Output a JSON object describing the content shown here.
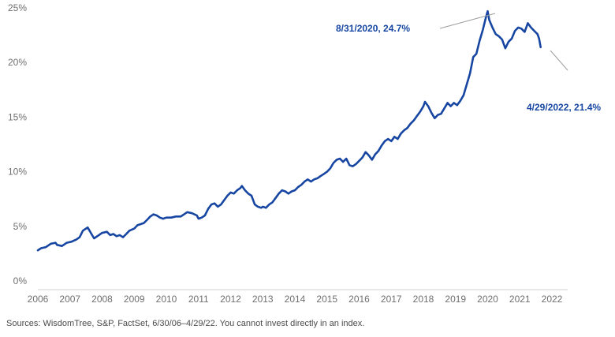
{
  "chart_data": {
    "type": "line",
    "title": "",
    "xlabel": "",
    "ylabel": "",
    "ylim": [
      0,
      25
    ],
    "xlim": [
      2006.0,
      2022.0
    ],
    "grid": false,
    "y_ticks": [
      "0%",
      "5%",
      "10%",
      "15%",
      "20%",
      "25%"
    ],
    "x_ticks": [
      "2006",
      "2007",
      "2008",
      "2009",
      "2010",
      "2011",
      "2012",
      "2013",
      "2014",
      "2015",
      "2016",
      "2017",
      "2018",
      "2019",
      "2020",
      "2021",
      "2022"
    ],
    "line_color": "#1746a2",
    "series": [
      {
        "values": [
          [
            2006.0,
            2.8
          ],
          [
            2006.1,
            3.0
          ],
          [
            2006.25,
            3.1
          ],
          [
            2006.4,
            3.4
          ],
          [
            2006.55,
            3.5
          ],
          [
            2006.6,
            3.3
          ],
          [
            2006.75,
            3.2
          ],
          [
            2006.9,
            3.5
          ],
          [
            2007.05,
            3.6
          ],
          [
            2007.2,
            3.8
          ],
          [
            2007.3,
            4.0
          ],
          [
            2007.4,
            4.6
          ],
          [
            2007.55,
            4.9
          ],
          [
            2007.65,
            4.4
          ],
          [
            2007.75,
            3.9
          ],
          [
            2007.9,
            4.2
          ],
          [
            2008.0,
            4.4
          ],
          [
            2008.15,
            4.5
          ],
          [
            2008.25,
            4.2
          ],
          [
            2008.35,
            4.3
          ],
          [
            2008.45,
            4.1
          ],
          [
            2008.55,
            4.2
          ],
          [
            2008.65,
            4.0
          ],
          [
            2008.75,
            4.3
          ],
          [
            2008.85,
            4.6
          ],
          [
            2009.0,
            4.8
          ],
          [
            2009.1,
            5.1
          ],
          [
            2009.2,
            5.2
          ],
          [
            2009.3,
            5.3
          ],
          [
            2009.4,
            5.6
          ],
          [
            2009.5,
            5.9
          ],
          [
            2009.6,
            6.1
          ],
          [
            2009.7,
            6.0
          ],
          [
            2009.8,
            5.8
          ],
          [
            2009.9,
            5.7
          ],
          [
            2010.0,
            5.8
          ],
          [
            2010.15,
            5.8
          ],
          [
            2010.3,
            5.9
          ],
          [
            2010.45,
            5.9
          ],
          [
            2010.55,
            6.1
          ],
          [
            2010.65,
            6.3
          ],
          [
            2010.8,
            6.2
          ],
          [
            2010.95,
            6.0
          ],
          [
            2011.0,
            5.7
          ],
          [
            2011.1,
            5.8
          ],
          [
            2011.2,
            6.0
          ],
          [
            2011.3,
            6.6
          ],
          [
            2011.4,
            7.0
          ],
          [
            2011.5,
            7.1
          ],
          [
            2011.6,
            6.8
          ],
          [
            2011.7,
            7.0
          ],
          [
            2011.8,
            7.4
          ],
          [
            2011.9,
            7.8
          ],
          [
            2012.0,
            8.1
          ],
          [
            2012.1,
            8.0
          ],
          [
            2012.2,
            8.3
          ],
          [
            2012.3,
            8.5
          ],
          [
            2012.35,
            8.7
          ],
          [
            2012.45,
            8.3
          ],
          [
            2012.55,
            8.0
          ],
          [
            2012.65,
            7.8
          ],
          [
            2012.75,
            7.0
          ],
          [
            2012.85,
            6.8
          ],
          [
            2012.95,
            6.7
          ],
          [
            2013.0,
            6.8
          ],
          [
            2013.1,
            6.7
          ],
          [
            2013.2,
            7.0
          ],
          [
            2013.3,
            7.2
          ],
          [
            2013.4,
            7.6
          ],
          [
            2013.5,
            8.0
          ],
          [
            2013.6,
            8.3
          ],
          [
            2013.7,
            8.2
          ],
          [
            2013.8,
            8.0
          ],
          [
            2013.9,
            8.2
          ],
          [
            2014.0,
            8.3
          ],
          [
            2014.1,
            8.6
          ],
          [
            2014.2,
            8.8
          ],
          [
            2014.3,
            9.1
          ],
          [
            2014.4,
            9.3
          ],
          [
            2014.5,
            9.1
          ],
          [
            2014.6,
            9.3
          ],
          [
            2014.7,
            9.4
          ],
          [
            2014.8,
            9.6
          ],
          [
            2014.9,
            9.8
          ],
          [
            2015.0,
            10.0
          ],
          [
            2015.1,
            10.3
          ],
          [
            2015.2,
            10.8
          ],
          [
            2015.3,
            11.1
          ],
          [
            2015.4,
            11.2
          ],
          [
            2015.5,
            10.9
          ],
          [
            2015.6,
            11.2
          ],
          [
            2015.7,
            10.6
          ],
          [
            2015.8,
            10.5
          ],
          [
            2015.9,
            10.7
          ],
          [
            2016.0,
            11.0
          ],
          [
            2016.1,
            11.3
          ],
          [
            2016.2,
            11.8
          ],
          [
            2016.3,
            11.5
          ],
          [
            2016.4,
            11.1
          ],
          [
            2016.5,
            11.6
          ],
          [
            2016.6,
            11.9
          ],
          [
            2016.7,
            12.4
          ],
          [
            2016.8,
            12.8
          ],
          [
            2016.9,
            13.0
          ],
          [
            2017.0,
            12.8
          ],
          [
            2017.1,
            13.2
          ],
          [
            2017.2,
            13.0
          ],
          [
            2017.3,
            13.5
          ],
          [
            2017.4,
            13.8
          ],
          [
            2017.5,
            14.0
          ],
          [
            2017.6,
            14.4
          ],
          [
            2017.7,
            14.7
          ],
          [
            2017.8,
            15.1
          ],
          [
            2017.9,
            15.5
          ],
          [
            2018.0,
            16.0
          ],
          [
            2018.05,
            16.4
          ],
          [
            2018.15,
            16.0
          ],
          [
            2018.25,
            15.4
          ],
          [
            2018.35,
            14.9
          ],
          [
            2018.45,
            15.2
          ],
          [
            2018.55,
            15.3
          ],
          [
            2018.65,
            15.8
          ],
          [
            2018.75,
            16.3
          ],
          [
            2018.85,
            16.0
          ],
          [
            2018.95,
            16.3
          ],
          [
            2019.05,
            16.1
          ],
          [
            2019.15,
            16.5
          ],
          [
            2019.25,
            17.0
          ],
          [
            2019.35,
            18.0
          ],
          [
            2019.45,
            19.0
          ],
          [
            2019.55,
            20.5
          ],
          [
            2019.65,
            20.8
          ],
          [
            2019.75,
            22.0
          ],
          [
            2019.85,
            23.0
          ],
          [
            2019.95,
            24.2
          ],
          [
            2020.0,
            24.7
          ],
          [
            2020.05,
            23.9
          ],
          [
            2020.15,
            23.2
          ],
          [
            2020.25,
            22.6
          ],
          [
            2020.35,
            22.4
          ],
          [
            2020.45,
            22.1
          ],
          [
            2020.55,
            21.3
          ],
          [
            2020.65,
            21.9
          ],
          [
            2020.75,
            22.2
          ],
          [
            2020.85,
            22.9
          ],
          [
            2020.95,
            23.2
          ],
          [
            2021.05,
            23.1
          ],
          [
            2021.15,
            22.8
          ],
          [
            2021.25,
            23.6
          ],
          [
            2021.35,
            23.2
          ],
          [
            2021.45,
            22.9
          ],
          [
            2021.55,
            22.6
          ],
          [
            2021.6,
            22.2
          ],
          [
            2021.65,
            21.4
          ]
        ]
      }
    ],
    "annotations": [
      {
        "text": "8/31/2020, 24.7%",
        "x": 2020.0,
        "y": 24.7
      },
      {
        "text": "4/29/2022, 21.4%",
        "x": 2021.65,
        "y": 21.4
      }
    ],
    "source": "Sources: WisdomTree, S&P, FactSet, 6/30/06–4/29/22. You cannot invest directly in an index."
  }
}
